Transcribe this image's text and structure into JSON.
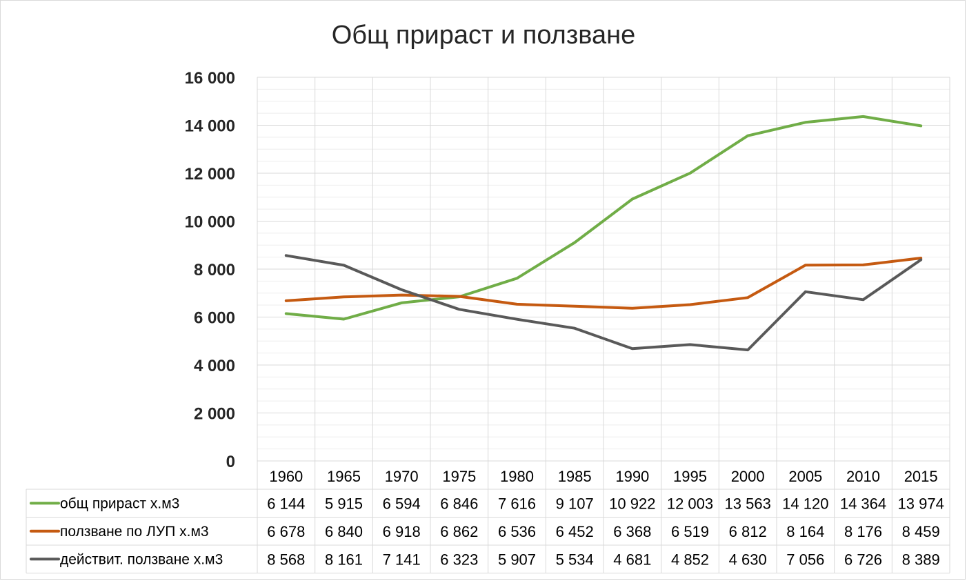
{
  "chart_data": {
    "type": "line",
    "title": "Общ прираст и ползване",
    "categories": [
      "1960",
      "1965",
      "1970",
      "1975",
      "1980",
      "1985",
      "1990",
      "1995",
      "2000",
      "2005",
      "2010",
      "2015"
    ],
    "ylim": [
      0,
      16000
    ],
    "yticks": [
      0,
      2000,
      4000,
      6000,
      8000,
      10000,
      12000,
      14000,
      16000
    ],
    "ytick_labels": [
      "0",
      "2 000",
      "4 000",
      "6 000",
      "8 000",
      "10 000",
      "12 000",
      "14 000",
      "16 000"
    ],
    "grid": true,
    "legend_placement": "data-table",
    "series": [
      {
        "name": "общ прираст х.м3",
        "color": "#70ad47",
        "values": [
          6144,
          5915,
          6594,
          6846,
          7616,
          9107,
          10922,
          12003,
          13563,
          14120,
          14364,
          13974
        ],
        "labels": [
          "6 144",
          "5 915",
          "6 594",
          "6 846",
          "7 616",
          "9 107",
          "10 922",
          "12 003",
          "13 563",
          "14 120",
          "14 364",
          "13 974"
        ]
      },
      {
        "name": "ползване по ЛУП х.м3",
        "color": "#c55a11",
        "values": [
          6678,
          6840,
          6918,
          6862,
          6536,
          6452,
          6368,
          6519,
          6812,
          8164,
          8176,
          8459
        ],
        "labels": [
          "6 678",
          "6 840",
          "6 918",
          "6 862",
          "6 536",
          "6 452",
          "6 368",
          "6 519",
          "6 812",
          "8 164",
          "8 176",
          "8 459"
        ]
      },
      {
        "name": "действит. ползване х.м3",
        "color": "#595959",
        "values": [
          8568,
          8161,
          7141,
          6323,
          5907,
          5534,
          4681,
          4852,
          4630,
          7056,
          6726,
          8389
        ],
        "labels": [
          "8 568",
          "8 161",
          "7 141",
          "6 323",
          "5 907",
          "5 534",
          "4 681",
          "4 852",
          "4 630",
          "7 056",
          "6 726",
          "8 389"
        ]
      }
    ]
  }
}
